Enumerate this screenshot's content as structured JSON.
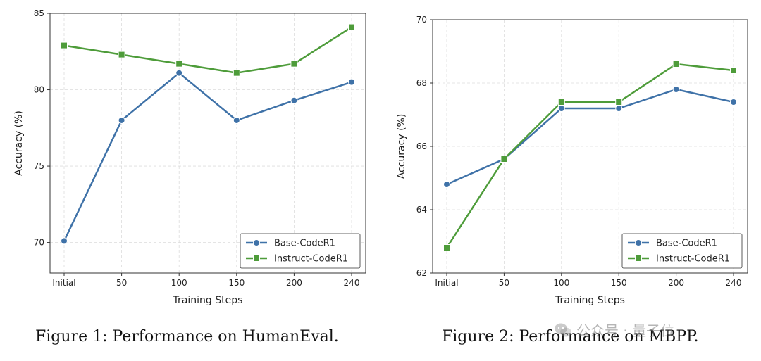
{
  "chart_data": [
    {
      "type": "line",
      "title": "",
      "xlabel": "Training Steps",
      "ylabel": "Accuracy (%)",
      "categories": [
        "Initial",
        "50",
        "100",
        "150",
        "200",
        "240"
      ],
      "ylim": [
        68,
        85
      ],
      "yticks": [
        70,
        75,
        80,
        85
      ],
      "grid": true,
      "legend": "bottom-right",
      "series": [
        {
          "name": "Base-CodeR1",
          "color": "#3f72a8",
          "marker": "circle",
          "values": [
            70.1,
            78.0,
            81.1,
            78.0,
            79.3,
            80.5
          ]
        },
        {
          "name": "Instruct-CodeR1",
          "color": "#4e9c3a",
          "marker": "square",
          "values": [
            82.9,
            82.3,
            81.7,
            81.1,
            81.7,
            84.1
          ]
        }
      ]
    },
    {
      "type": "line",
      "title": "",
      "xlabel": "Training Steps",
      "ylabel": "Accuracy (%)",
      "categories": [
        "Initial",
        "50",
        "100",
        "150",
        "200",
        "240"
      ],
      "ylim": [
        62,
        70
      ],
      "yticks": [
        62,
        64,
        66,
        68,
        70
      ],
      "grid": true,
      "legend": "bottom-right",
      "series": [
        {
          "name": "Base-CodeR1",
          "color": "#3f72a8",
          "marker": "circle",
          "values": [
            64.8,
            65.6,
            67.2,
            67.2,
            67.8,
            67.4
          ]
        },
        {
          "name": "Instruct-CodeR1",
          "color": "#4e9c3a",
          "marker": "square",
          "values": [
            62.8,
            65.6,
            67.4,
            67.4,
            68.6,
            68.4
          ]
        }
      ]
    }
  ],
  "captions": {
    "fig1": "Figure 1: Performance on HumanEval.",
    "fig2": "Figure 2: Performance on MBPP."
  },
  "watermark": {
    "text": "公众号 · 量子位",
    "icon": "wechat-icon"
  }
}
